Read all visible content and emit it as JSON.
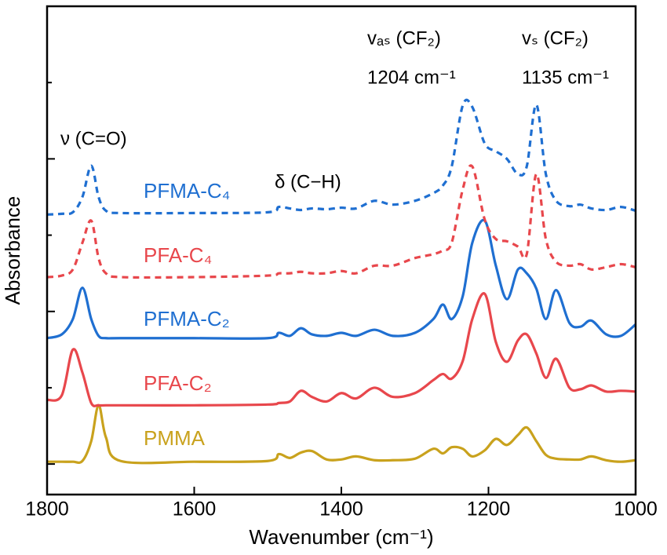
{
  "chart_data": {
    "type": "line",
    "x_label": "Wavenumber (cm⁻¹)",
    "y_label": "Absorbance",
    "xlim": [
      1800,
      1000
    ],
    "xticks": [
      1800,
      1600,
      1400,
      1200,
      1000
    ],
    "ylim": [
      -0.4,
      6
    ],
    "yticks": [
      0,
      1,
      2,
      3,
      4,
      5
    ],
    "show_ytick_labels": false,
    "x": [
      1800,
      1780,
      1765,
      1752,
      1740,
      1730,
      1720,
      1700,
      1600,
      1500,
      1485,
      1470,
      1455,
      1440,
      1420,
      1400,
      1380,
      1355,
      1330,
      1300,
      1275,
      1262,
      1250,
      1235,
      1222,
      1205,
      1190,
      1175,
      1160,
      1148,
      1135,
      1122,
      1108,
      1090,
      1075,
      1060,
      1040,
      1020,
      1000
    ],
    "series": [
      {
        "name": "PMMA",
        "color": "#c9a21d",
        "dashed": false,
        "values": [
          0.03,
          0.03,
          0.03,
          0.04,
          0.3,
          0.77,
          0.35,
          0.04,
          0.03,
          0.04,
          0.13,
          0.08,
          0.15,
          0.17,
          0.06,
          0.06,
          0.1,
          0.05,
          0.05,
          0.07,
          0.2,
          0.14,
          0.22,
          0.2,
          0.1,
          0.18,
          0.33,
          0.25,
          0.38,
          0.48,
          0.3,
          0.12,
          0.07,
          0.06,
          0.06,
          0.1,
          0.05,
          0.03,
          0.05
        ]
      },
      {
        "name": "PFA-C₂",
        "color": "#e8474c",
        "dashed": false,
        "values": [
          0.84,
          0.9,
          1.5,
          1.2,
          0.8,
          0.77,
          0.77,
          0.77,
          0.77,
          0.78,
          0.8,
          0.82,
          0.96,
          0.88,
          0.82,
          0.93,
          0.86,
          1.0,
          0.88,
          0.93,
          1.1,
          1.18,
          1.12,
          1.35,
          1.9,
          2.23,
          1.6,
          1.34,
          1.62,
          1.7,
          1.45,
          1.13,
          1.38,
          1.0,
          0.98,
          1.03,
          0.95,
          0.96,
          0.95
        ]
      },
      {
        "name": "PFMA-C₂",
        "color": "#1f6fd1",
        "dashed": false,
        "values": [
          1.65,
          1.7,
          1.9,
          2.31,
          1.9,
          1.68,
          1.65,
          1.65,
          1.65,
          1.65,
          1.72,
          1.68,
          1.78,
          1.7,
          1.68,
          1.72,
          1.68,
          1.76,
          1.68,
          1.72,
          1.9,
          2.09,
          1.9,
          2.2,
          2.9,
          3.19,
          2.6,
          2.16,
          2.55,
          2.5,
          2.3,
          1.9,
          2.28,
          1.85,
          1.8,
          1.88,
          1.7,
          1.68,
          1.83
        ]
      },
      {
        "name": "PFA-C₄",
        "color": "#e8474c",
        "dashed": true,
        "values": [
          2.45,
          2.47,
          2.55,
          2.9,
          3.19,
          2.7,
          2.5,
          2.45,
          2.45,
          2.47,
          2.5,
          2.5,
          2.52,
          2.5,
          2.5,
          2.53,
          2.5,
          2.6,
          2.6,
          2.7,
          2.75,
          2.8,
          2.9,
          3.6,
          3.9,
          3.2,
          2.95,
          2.92,
          2.85,
          2.75,
          3.8,
          2.95,
          2.65,
          2.6,
          2.62,
          2.55,
          2.58,
          2.62,
          2.58
        ]
      },
      {
        "name": "PFMA-C₄",
        "color": "#1f6fd1",
        "dashed": true,
        "values": [
          3.27,
          3.28,
          3.3,
          3.5,
          3.91,
          3.5,
          3.32,
          3.29,
          3.29,
          3.3,
          3.37,
          3.35,
          3.33,
          3.35,
          3.34,
          3.36,
          3.35,
          3.45,
          3.4,
          3.45,
          3.55,
          3.65,
          3.9,
          4.7,
          4.68,
          4.2,
          4.1,
          4.0,
          3.8,
          3.9,
          4.71,
          3.8,
          3.45,
          3.38,
          3.4,
          3.35,
          3.33,
          3.37,
          3.32
        ]
      }
    ],
    "annotations": [
      "ν (C=O)",
      "δ (C−H)",
      "vₐₛ (CF₂)",
      "1204 cm⁻¹",
      "vₛ (CF₂)",
      "1135 cm⁻¹"
    ]
  }
}
